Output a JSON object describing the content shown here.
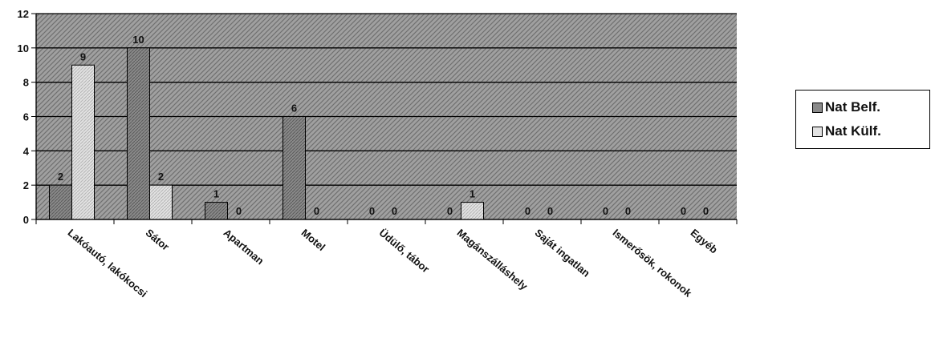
{
  "chart_data": {
    "type": "bar",
    "categories": [
      "Lakóautó, lakókocsi",
      "Sátor",
      "Apartman",
      "Motel",
      "Üdülő, tábor",
      "Magánszálláshely",
      "Saját ingatlan",
      "Ismerősök, rokonok",
      "Egyéb"
    ],
    "series": [
      {
        "name": "Nat Belf.",
        "values": [
          2,
          10,
          1,
          6,
          0,
          0,
          0,
          0,
          0
        ],
        "color": "#8a8a8a"
      },
      {
        "name": "Nat Külf.",
        "values": [
          9,
          2,
          0,
          0,
          0,
          1,
          0,
          0,
          0
        ],
        "color": "#d6d6d6"
      }
    ],
    "ylim": [
      0,
      12
    ],
    "yticks": [
      "0",
      "2",
      "4",
      "6",
      "8",
      "10",
      "12"
    ],
    "grid": true,
    "legend_position": "right",
    "background": "#9a9a9a"
  }
}
